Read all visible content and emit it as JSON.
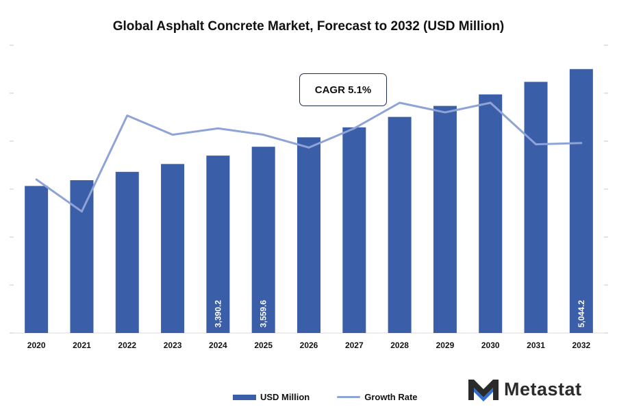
{
  "colors": {
    "bar": "#3a5ea8",
    "line": "#8ea3d6",
    "brand_dark": "#2b2b2b",
    "brand_blue": "#2e6fd0"
  },
  "legend": {
    "bar_label": "USD Million",
    "line_label": "Growth Rate"
  },
  "annotation": {
    "cagr": "CAGR 5.1%"
  },
  "logo": {
    "text": "Metastat",
    "icon": "metastat-m-logo-icon"
  },
  "chart_data": {
    "type": "bar",
    "title": "Global Asphalt Concrete Market, Forecast to 2032 (USD Million)",
    "categories": [
      "2020",
      "2021",
      "2022",
      "2023",
      "2024",
      "2025",
      "2026",
      "2027",
      "2028",
      "2029",
      "2030",
      "2031",
      "2032"
    ],
    "series": [
      {
        "name": "USD Million",
        "type": "bar",
        "values": [
          2810,
          2920,
          3080,
          3230,
          3390.2,
          3559.6,
          3740,
          3930,
          4130,
          4340,
          4560,
          4800,
          5044.2
        ],
        "data_labels": {
          "4": "3,390.2",
          "5": "3,559.6",
          "12": "5,044.2"
        }
      },
      {
        "name": "Growth Rate",
        "type": "line",
        "values": [
          4.4,
          3.9,
          5.4,
          5.1,
          5.2,
          5.1,
          4.9,
          5.2,
          5.6,
          5.45,
          5.6,
          4.95,
          4.97
        ]
      }
    ],
    "ylim": [
      0,
      5500
    ],
    "y2lim": [
      2.0,
      6.5
    ],
    "grid": false,
    "legend_position": "bottom"
  }
}
